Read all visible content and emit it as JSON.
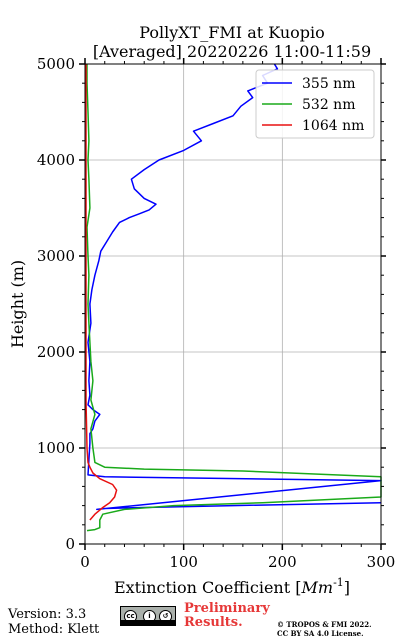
{
  "chart_data": {
    "type": "line",
    "title": "PollyXT_FMI at Kuopio",
    "subtitle": "[Averaged] 20220226 11:00-11:59",
    "xlabel": "Extinction Coefficient",
    "xlabel_unit": "Mm",
    "xlabel_unit_exp": "-1",
    "ylabel": "Height (m)",
    "xlim": [
      0,
      300
    ],
    "ylim": [
      0,
      5000
    ],
    "x_ticks": [
      0,
      100,
      200,
      300
    ],
    "y_ticks": [
      0,
      1000,
      2000,
      3000,
      4000,
      5000
    ],
    "grid": true,
    "legend_position": "top-right",
    "series": [
      {
        "name": "355 nm",
        "color": "#0000ff",
        "points": [
          [
            300,
            430
          ],
          [
            150,
            400
          ],
          [
            60,
            380
          ],
          [
            20,
            370
          ],
          [
            12,
            360
          ],
          [
            300,
            660
          ],
          [
            20,
            700
          ],
          [
            3,
            720
          ],
          [
            5,
            1050
          ],
          [
            5,
            1150
          ],
          [
            8,
            1200
          ],
          [
            10,
            1280
          ],
          [
            15,
            1350
          ],
          [
            8,
            1400
          ],
          [
            3,
            1450
          ],
          [
            5,
            1550
          ],
          [
            4,
            1700
          ],
          [
            5,
            1900
          ],
          [
            3,
            2100
          ],
          [
            6,
            2300
          ],
          [
            5,
            2500
          ],
          [
            7,
            2650
          ],
          [
            10,
            2800
          ],
          [
            14,
            2950
          ],
          [
            16,
            3050
          ],
          [
            22,
            3150
          ],
          [
            28,
            3250
          ],
          [
            35,
            3350
          ],
          [
            45,
            3400
          ],
          [
            55,
            3440
          ],
          [
            65,
            3480
          ],
          [
            72,
            3540
          ],
          [
            60,
            3600
          ],
          [
            50,
            3700
          ],
          [
            47,
            3800
          ],
          [
            60,
            3900
          ],
          [
            75,
            4000
          ],
          [
            100,
            4100
          ],
          [
            118,
            4200
          ],
          [
            110,
            4300
          ],
          [
            130,
            4380
          ],
          [
            150,
            4460
          ],
          [
            158,
            4560
          ],
          [
            170,
            4650
          ],
          [
            165,
            4720
          ],
          [
            185,
            4800
          ],
          [
            180,
            4880
          ],
          [
            195,
            4950
          ],
          [
            192,
            5000
          ]
        ]
      },
      {
        "name": "532 nm",
        "color": "#1aaa1a",
        "points": [
          [
            2,
            140
          ],
          [
            10,
            150
          ],
          [
            15,
            170
          ],
          [
            15,
            250
          ],
          [
            18,
            310
          ],
          [
            40,
            360
          ],
          [
            90,
            400
          ],
          [
            180,
            430
          ],
          [
            300,
            490
          ],
          [
            300,
            700
          ],
          [
            160,
            760
          ],
          [
            60,
            780
          ],
          [
            20,
            800
          ],
          [
            10,
            850
          ],
          [
            8,
            1000
          ],
          [
            6,
            1200
          ],
          [
            10,
            1350
          ],
          [
            6,
            1500
          ],
          [
            8,
            1700
          ],
          [
            6,
            1900
          ],
          [
            5,
            2100
          ],
          [
            4,
            2300
          ],
          [
            3,
            2500
          ],
          [
            4,
            2800
          ],
          [
            3,
            3000
          ],
          [
            2,
            3300
          ],
          [
            5,
            3500
          ],
          [
            4,
            3800
          ],
          [
            3,
            4000
          ],
          [
            4,
            4200
          ],
          [
            3,
            4500
          ],
          [
            2,
            4800
          ],
          [
            2,
            5000
          ]
        ]
      },
      {
        "name": "1064 nm",
        "color": "#e81010",
        "points": [
          [
            5,
            250
          ],
          [
            10,
            310
          ],
          [
            18,
            380
          ],
          [
            25,
            430
          ],
          [
            30,
            490
          ],
          [
            32,
            560
          ],
          [
            28,
            620
          ],
          [
            15,
            680
          ],
          [
            8,
            740
          ],
          [
            5,
            800
          ],
          [
            3,
            850
          ],
          [
            2,
            1000
          ],
          [
            1,
            1500
          ],
          [
            1,
            2000
          ],
          [
            1,
            2500
          ],
          [
            1,
            3000
          ],
          [
            1,
            3500
          ],
          [
            1,
            4000
          ],
          [
            1,
            4500
          ],
          [
            1,
            5000
          ]
        ]
      }
    ]
  },
  "footer": {
    "version": "Version: 3.3",
    "method": "Method: Klett",
    "preliminary_line1": "Preliminary",
    "preliminary_line2": "Results.",
    "copyright_line1": "© TROPOS & FMI 2022.",
    "copyright_line2": "CC BY SA 4.0 License."
  }
}
